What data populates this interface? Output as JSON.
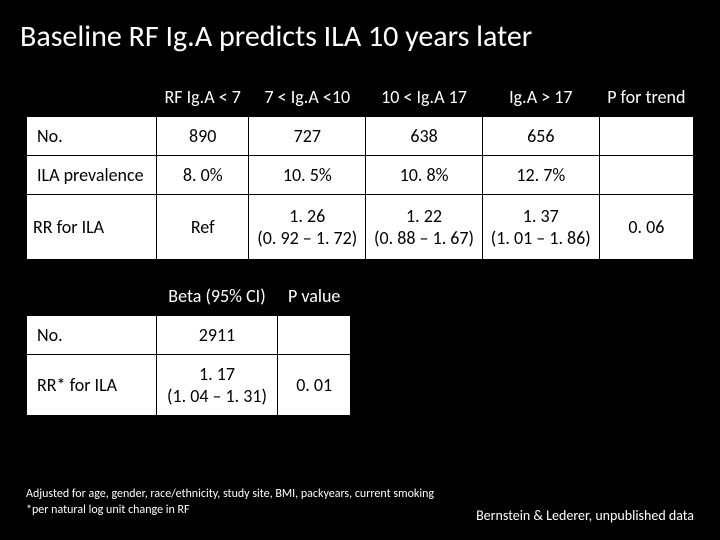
{
  "title": "Baseline RF Ig.A predicts ILA 10 years later",
  "table1": {
    "headers": [
      "RF Ig.A < 7",
      "7 < Ig.A <10",
      "10 < Ig.A 17",
      "Ig.A > 17",
      "P for trend"
    ],
    "rows": {
      "no": {
        "label": "No.",
        "c1": "890",
        "c2": "727",
        "c3": "638",
        "c4": "656",
        "c5": ""
      },
      "prev": {
        "label": "ILA prevalence",
        "c1": "8. 0%",
        "c2": "10. 5%",
        "c3": "10. 8%",
        "c4": "12. 7%",
        "c5": ""
      },
      "rr": {
        "label": "RR for ILA",
        "c1": "Ref",
        "c2": "1. 26\n(0. 92 – 1. 72)",
        "c3": "1. 22\n(0. 88 – 1. 67)",
        "c4": "1. 37\n(1. 01 – 1. 86)",
        "c5": "0. 06"
      }
    }
  },
  "table2": {
    "headers": [
      "Beta (95% CI)",
      "P value"
    ],
    "rows": {
      "no": {
        "label": "No.",
        "c1": "2911",
        "c2": ""
      },
      "rr": {
        "label": "RR* for ILA",
        "c1": "1. 17\n(1. 04 – 1. 31)",
        "c2": "0. 01"
      }
    }
  },
  "footnotes": {
    "l1": "Adjusted for age, gender, race/ethnicity, study site, BMI, packyears, current smoking",
    "l2": "*per natural log unit change in RF"
  },
  "credit": "Bernstein & Lederer, unpublished data"
}
